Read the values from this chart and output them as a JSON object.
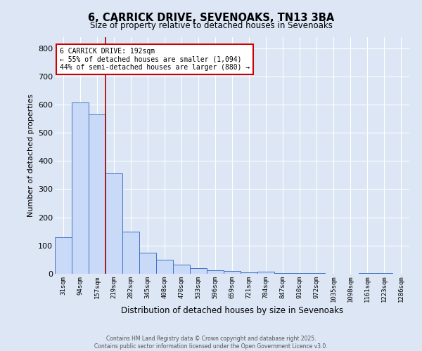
{
  "title_line1": "6, CARRICK DRIVE, SEVENOAKS, TN13 3BA",
  "title_line2": "Size of property relative to detached houses in Sevenoaks",
  "xlabel": "Distribution of detached houses by size in Sevenoaks",
  "ylabel": "Number of detached properties",
  "bin_labels": [
    "31sqm",
    "94sqm",
    "157sqm",
    "219sqm",
    "282sqm",
    "345sqm",
    "408sqm",
    "470sqm",
    "533sqm",
    "596sqm",
    "659sqm",
    "721sqm",
    "784sqm",
    "847sqm",
    "910sqm",
    "972sqm",
    "1035sqm",
    "1098sqm",
    "1161sqm",
    "1223sqm",
    "1286sqm"
  ],
  "bar_heights": [
    130,
    608,
    565,
    355,
    150,
    75,
    50,
    33,
    20,
    13,
    10,
    5,
    7,
    3,
    2,
    2,
    0,
    0,
    2,
    2,
    1
  ],
  "bar_color": "#c9daf8",
  "bar_edge_color": "#4472c4",
  "bg_color": "#dce6f5",
  "grid_color": "#ffffff",
  "vline_x_index": 2.5,
  "vline_color": "#aa0000",
  "annotation_text": "6 CARRICK DRIVE: 192sqm\n← 55% of detached houses are smaller (1,094)\n44% of semi-detached houses are larger (880) →",
  "annotation_box_color": "#ffffff",
  "annotation_box_edge": "#cc0000",
  "ylim": [
    0,
    840
  ],
  "yticks": [
    0,
    100,
    200,
    300,
    400,
    500,
    600,
    700,
    800
  ],
  "footer_line1": "Contains HM Land Registry data © Crown copyright and database right 2025.",
  "footer_line2": "Contains public sector information licensed under the Open Government Licence v3.0."
}
